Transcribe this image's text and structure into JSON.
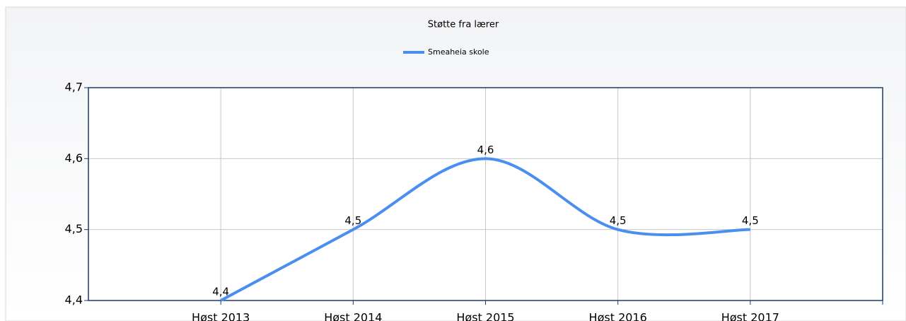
{
  "chart_data": {
    "type": "line",
    "title": "Støtte fra lærer",
    "categories": [
      "Høst 2013",
      "Høst 2014",
      "Høst 2015",
      "Høst 2016",
      "Høst 2017"
    ],
    "series": [
      {
        "name": "Smeaheia skole",
        "color": "#4a8ff0",
        "values": [
          4.4,
          4.5,
          4.6,
          4.5,
          4.5
        ],
        "value_labels": [
          "4,4",
          "4,5",
          "4,6",
          "4,5",
          "4,5"
        ]
      }
    ],
    "ylim": [
      4.4,
      4.7
    ],
    "yticks": [
      {
        "value": 4.4,
        "label": "4,4"
      },
      {
        "value": 4.5,
        "label": "4,5"
      },
      {
        "value": 4.6,
        "label": "4,6"
      },
      {
        "value": 4.7,
        "label": "4,7"
      }
    ],
    "grid": true,
    "smooth": true,
    "legend": "top"
  }
}
